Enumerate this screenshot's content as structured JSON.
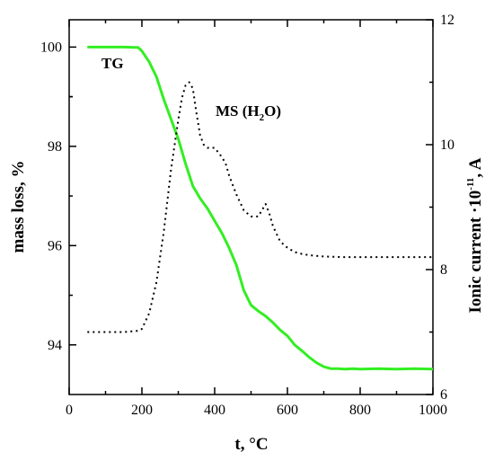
{
  "chart_data": {
    "type": "line",
    "x_axis": {
      "label": "t, °C",
      "range": [
        0,
        1000
      ],
      "ticks": [
        0,
        200,
        400,
        600,
        800,
        1000
      ],
      "tick_labels": [
        "0",
        "200",
        "400",
        "600",
        "800",
        "1000"
      ]
    },
    "y_left": {
      "label": "mass loss, %",
      "range": [
        93.0,
        100.55
      ],
      "ticks": [
        94,
        96,
        98,
        100
      ],
      "tick_labels": [
        "94",
        "96",
        "98",
        "100"
      ]
    },
    "y_right": {
      "label_main": "Ionic current ·10",
      "label_exp": "-11",
      "label_unit": ", A",
      "range": [
        6,
        12
      ],
      "ticks": [
        6,
        8,
        10,
        12
      ],
      "tick_labels": [
        "6",
        "8",
        "10",
        "12"
      ]
    },
    "annotations": {
      "tg": "TG",
      "ms_prefix": "MS (H",
      "ms_sub": "2",
      "ms_suffix": "O)"
    },
    "grid": false,
    "series": [
      {
        "name": "TG",
        "axis": "left",
        "color": "#33ee22",
        "style": "solid",
        "x": [
          50,
          100,
          150,
          190,
          200,
          220,
          240,
          260,
          280,
          300,
          320,
          340,
          360,
          380,
          400,
          420,
          440,
          460,
          480,
          500,
          520,
          540,
          560,
          580,
          600,
          620,
          640,
          660,
          680,
          700,
          720,
          740,
          760,
          780,
          800,
          850,
          900,
          950,
          1000
        ],
        "y": [
          100,
          100,
          100,
          99.99,
          99.92,
          99.7,
          99.4,
          98.95,
          98.55,
          98.15,
          97.65,
          97.2,
          96.95,
          96.75,
          96.5,
          96.25,
          95.95,
          95.6,
          95.1,
          94.8,
          94.68,
          94.58,
          94.45,
          94.3,
          94.18,
          94.0,
          93.88,
          93.75,
          93.64,
          93.56,
          93.52,
          93.52,
          93.51,
          93.52,
          93.51,
          93.52,
          93.51,
          93.52,
          93.51
        ]
      },
      {
        "name": "MS (H2O)",
        "axis": "right",
        "color": "#000000",
        "style": "dotted",
        "x": [
          50,
          100,
          150,
          190,
          200,
          220,
          240,
          260,
          280,
          300,
          310,
          320,
          330,
          340,
          350,
          360,
          370,
          380,
          400,
          420,
          430,
          440,
          460,
          480,
          500,
          520,
          530,
          540,
          550,
          560,
          580,
          600,
          620,
          640,
          660,
          680,
          700,
          750,
          800,
          850,
          900,
          950,
          1000
        ],
        "y": [
          7.0,
          7.0,
          7.0,
          7.02,
          7.05,
          7.3,
          7.8,
          8.6,
          9.6,
          10.4,
          10.75,
          10.95,
          11.0,
          10.9,
          10.5,
          10.15,
          10.0,
          9.95,
          9.95,
          9.8,
          9.7,
          9.5,
          9.2,
          8.95,
          8.85,
          8.85,
          8.95,
          9.05,
          8.9,
          8.7,
          8.45,
          8.35,
          8.28,
          8.25,
          8.23,
          8.22,
          8.21,
          8.2,
          8.2,
          8.2,
          8.2,
          8.2,
          8.2
        ]
      }
    ]
  }
}
